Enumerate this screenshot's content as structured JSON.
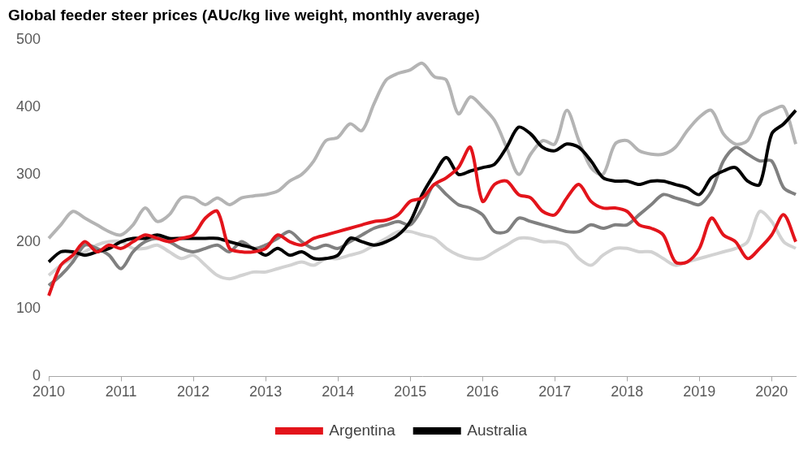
{
  "chart_data": {
    "type": "line",
    "title": "Global feeder steer prices (AUc/kg live weight, monthly average)",
    "categories": [
      "2010",
      null,
      null,
      null,
      null,
      null,
      "2011",
      null,
      null,
      null,
      null,
      null,
      "2012",
      null,
      null,
      null,
      null,
      null,
      "2013",
      null,
      null,
      null,
      null,
      null,
      "2014",
      null,
      null,
      null,
      null,
      null,
      "2015",
      null,
      null,
      null,
      null,
      null,
      "2016",
      null,
      null,
      null,
      null,
      null,
      "2017",
      null,
      null,
      null,
      null,
      null,
      "2018",
      null,
      null,
      null,
      null,
      null,
      "2019",
      null,
      null,
      null,
      null,
      null,
      "2020",
      null,
      null
    ],
    "series": [
      {
        "name": "Argentina",
        "color": "#e3141b",
        "values": [
          120,
          165,
          180,
          200,
          185,
          195,
          190,
          200,
          210,
          205,
          200,
          205,
          210,
          235,
          245,
          190,
          185,
          185,
          190,
          210,
          200,
          195,
          205,
          210,
          215,
          220,
          225,
          230,
          232,
          240,
          260,
          265,
          285,
          295,
          310,
          340,
          260,
          285,
          290,
          270,
          265,
          245,
          240,
          265,
          285,
          260,
          250,
          250,
          245,
          225,
          220,
          210,
          170,
          170,
          190,
          235,
          210,
          200,
          175,
          190,
          210,
          240,
          200
        ]
      },
      {
        "name": "Australia",
        "color": "#000000",
        "values": [
          170,
          185,
          185,
          180,
          185,
          190,
          200,
          205,
          205,
          210,
          205,
          205,
          205,
          205,
          205,
          200,
          195,
          190,
          180,
          190,
          180,
          185,
          175,
          175,
          180,
          205,
          200,
          195,
          200,
          210,
          230,
          270,
          300,
          325,
          300,
          305,
          310,
          315,
          340,
          370,
          360,
          340,
          335,
          345,
          340,
          320,
          295,
          290,
          290,
          285,
          290,
          290,
          285,
          280,
          270,
          295,
          305,
          310,
          290,
          285,
          360,
          375,
          395
        ]
      },
      {
        "color": "#b4b4b4",
        "values": [
          205,
          225,
          245,
          235,
          225,
          215,
          210,
          225,
          250,
          230,
          240,
          265,
          265,
          255,
          265,
          255,
          265,
          268,
          270,
          275,
          290,
          300,
          320,
          350,
          355,
          375,
          365,
          405,
          440,
          450,
          455,
          465,
          445,
          440,
          390,
          415,
          400,
          380,
          340,
          300,
          330,
          350,
          345,
          395,
          350,
          310,
          300,
          345,
          350,
          335,
          330,
          330,
          340,
          365,
          385,
          395,
          360,
          345,
          350,
          385,
          395,
          400,
          345
        ]
      },
      {
        "color": "#808080",
        "values": [
          135,
          150,
          170,
          195,
          190,
          180,
          160,
          185,
          200,
          205,
          200,
          190,
          185,
          190,
          195,
          185,
          200,
          190,
          195,
          205,
          215,
          200,
          190,
          195,
          190,
          200,
          210,
          220,
          225,
          230,
          225,
          250,
          285,
          270,
          255,
          250,
          240,
          215,
          215,
          235,
          230,
          225,
          220,
          215,
          215,
          225,
          220,
          225,
          225,
          240,
          255,
          270,
          265,
          260,
          255,
          275,
          320,
          340,
          330,
          320,
          320,
          280,
          270
        ]
      },
      {
        "color": "#d2d2d2",
        "values": [
          150,
          165,
          175,
          185,
          195,
          200,
          200,
          190,
          190,
          195,
          185,
          175,
          180,
          165,
          150,
          145,
          150,
          155,
          155,
          160,
          165,
          170,
          165,
          175,
          175,
          180,
          185,
          195,
          205,
          215,
          215,
          210,
          205,
          190,
          180,
          175,
          175,
          185,
          195,
          205,
          205,
          200,
          200,
          195,
          175,
          165,
          180,
          190,
          190,
          185,
          185,
          175,
          165,
          170,
          175,
          180,
          185,
          190,
          200,
          245,
          230,
          200,
          190
        ]
      }
    ],
    "ylim": [
      0,
      500
    ],
    "yticks": [
      0,
      100,
      200,
      300,
      400,
      500
    ],
    "grid": false,
    "legend": "bottom"
  }
}
